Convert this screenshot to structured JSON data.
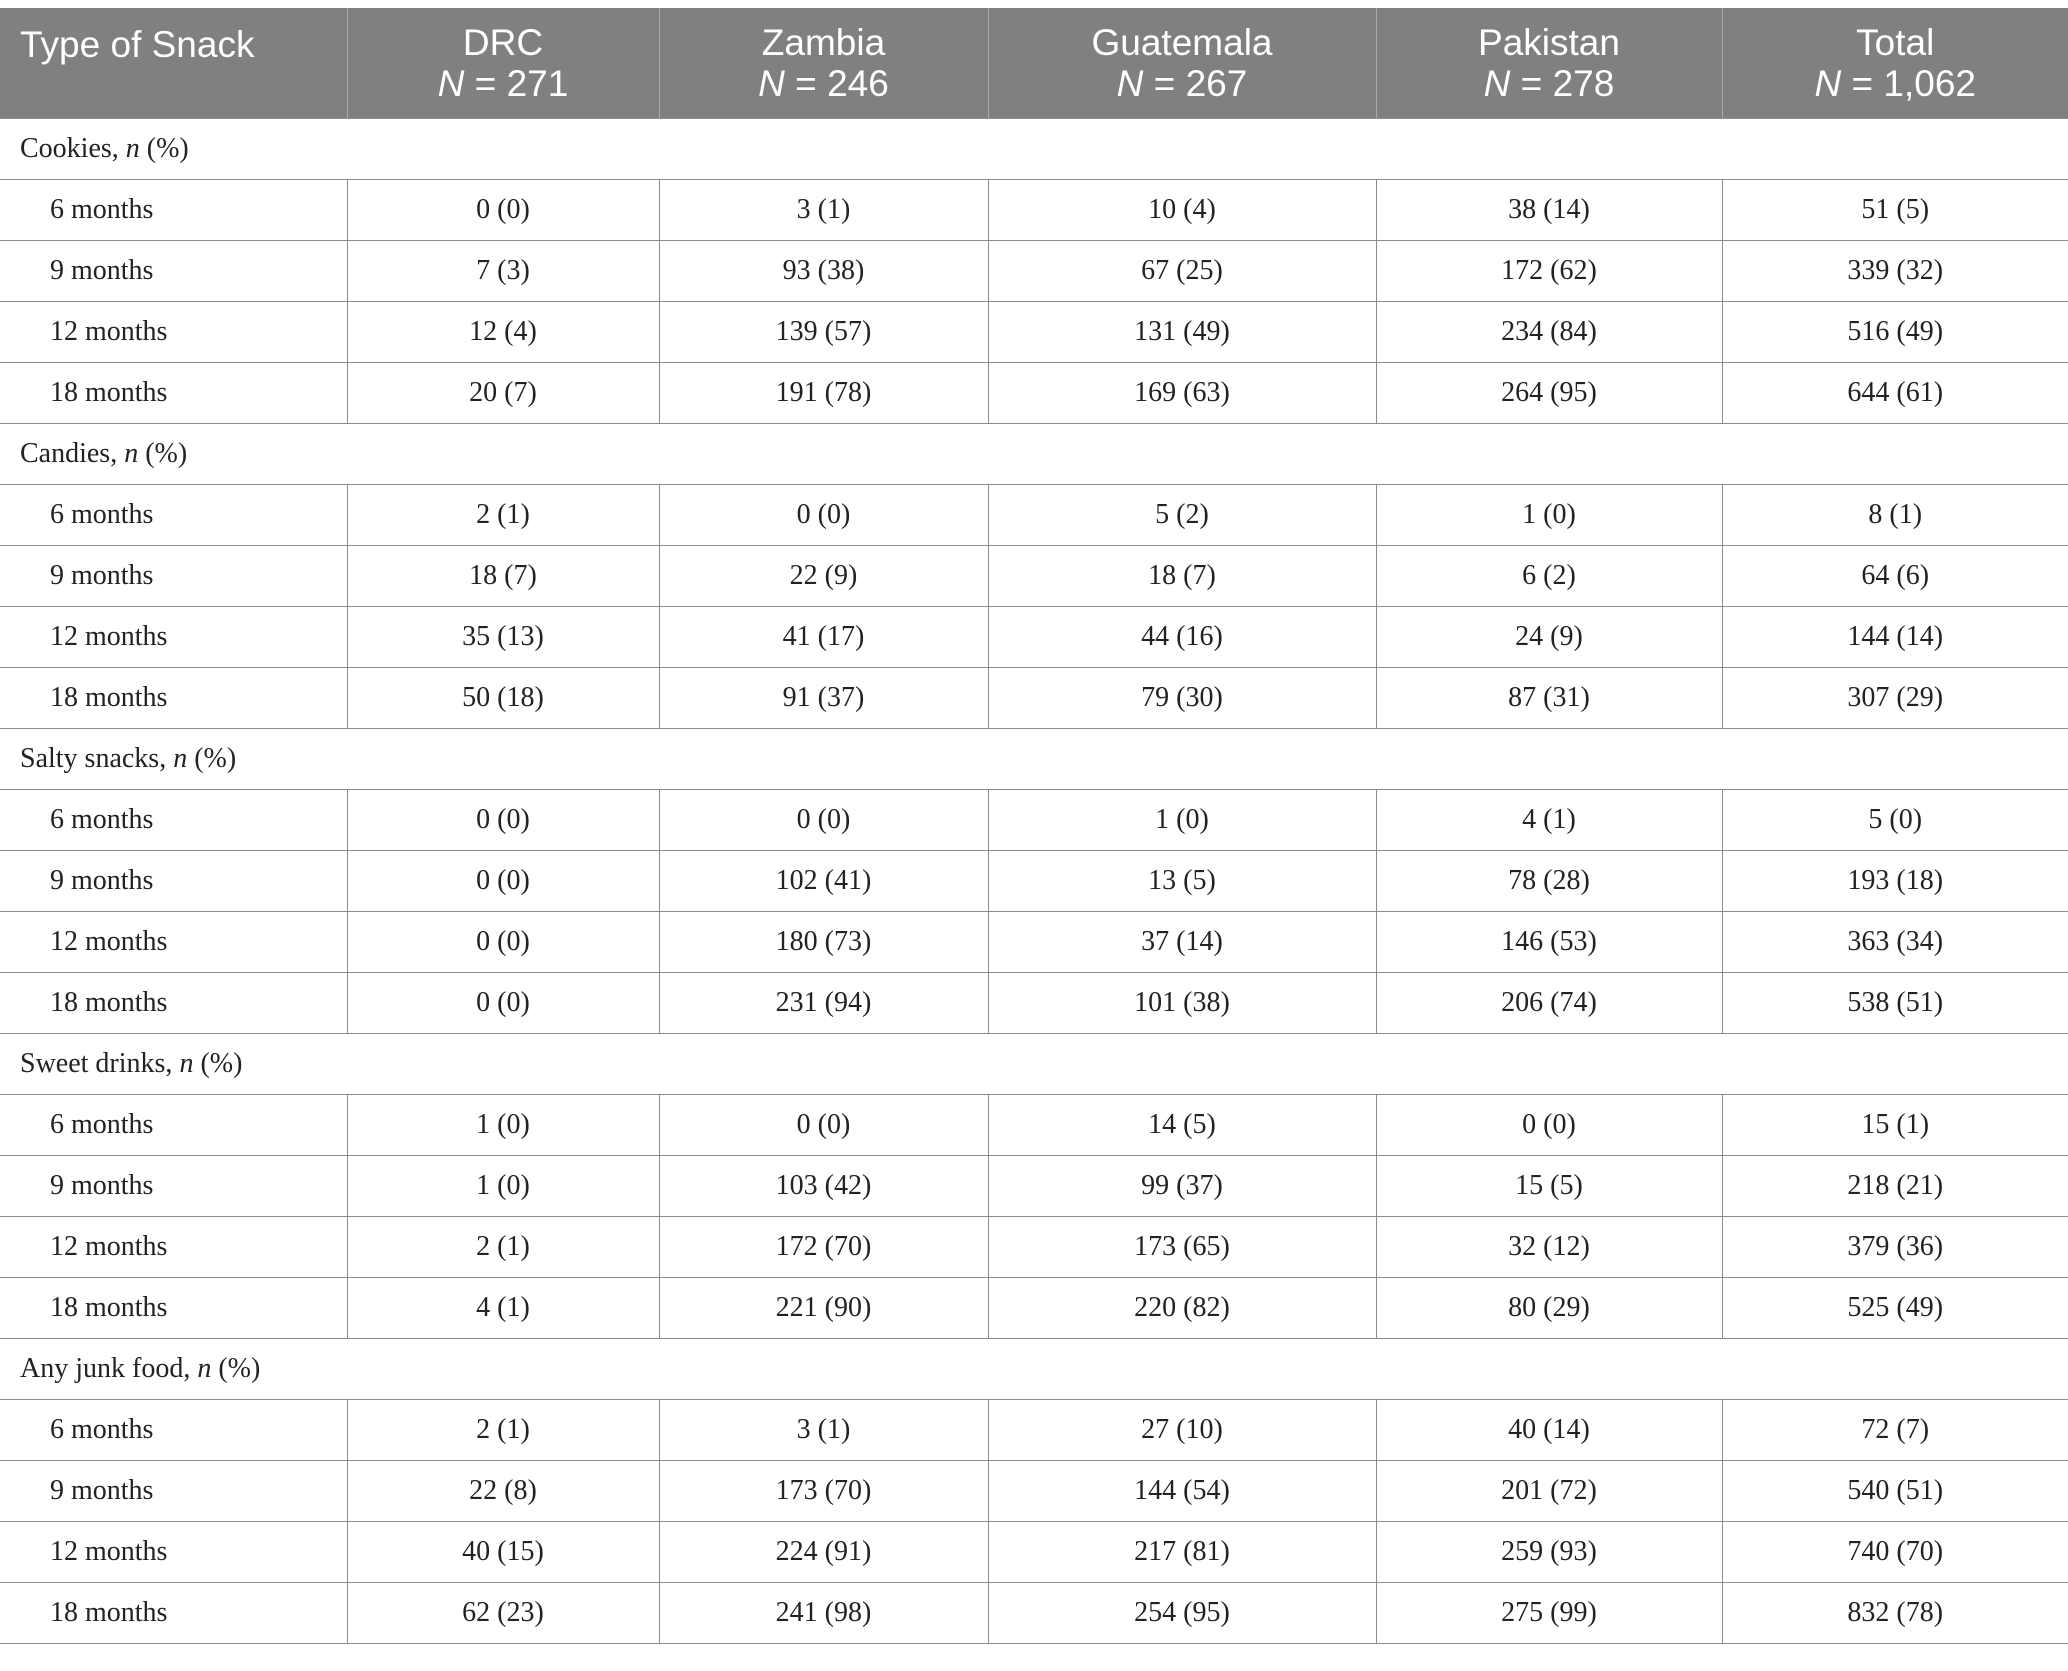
{
  "header": {
    "type_label": "Type of Snack",
    "columns": [
      {
        "name": "DRC",
        "n": "271"
      },
      {
        "name": "Zambia",
        "n": "246"
      },
      {
        "name": "Guatemala",
        "n": "267"
      },
      {
        "name": "Pakistan",
        "n": "278"
      },
      {
        "name": "Total",
        "n": "1,062"
      }
    ]
  },
  "n_prefix": "N = ",
  "sections": [
    {
      "title": "Cookies, ",
      "unit": "n",
      "unit_suffix": " (%)",
      "rows": [
        {
          "label": "6 months",
          "values": [
            "0 (0)",
            "3 (1)",
            "10 (4)",
            "38 (14)",
            "51 (5)"
          ]
        },
        {
          "label": "9 months",
          "values": [
            "7 (3)",
            "93 (38)",
            "67 (25)",
            "172 (62)",
            "339 (32)"
          ]
        },
        {
          "label": "12 months",
          "values": [
            "12 (4)",
            "139 (57)",
            "131 (49)",
            "234 (84)",
            "516 (49)"
          ]
        },
        {
          "label": "18 months",
          "values": [
            "20 (7)",
            "191 (78)",
            "169 (63)",
            "264 (95)",
            "644 (61)"
          ]
        }
      ]
    },
    {
      "title": "Candies, ",
      "unit": "n",
      "unit_suffix": " (%)",
      "rows": [
        {
          "label": "6 months",
          "values": [
            "2 (1)",
            "0 (0)",
            "5 (2)",
            "1 (0)",
            "8 (1)"
          ]
        },
        {
          "label": "9 months",
          "values": [
            "18 (7)",
            "22 (9)",
            "18 (7)",
            "6 (2)",
            "64 (6)"
          ]
        },
        {
          "label": "12 months",
          "values": [
            "35 (13)",
            "41 (17)",
            "44 (16)",
            "24 (9)",
            "144 (14)"
          ]
        },
        {
          "label": "18 months",
          "values": [
            "50 (18)",
            "91 (37)",
            "79 (30)",
            "87 (31)",
            "307 (29)"
          ]
        }
      ]
    },
    {
      "title": "Salty snacks, ",
      "unit": "n",
      "unit_suffix": " (%)",
      "rows": [
        {
          "label": "6 months",
          "values": [
            "0 (0)",
            "0 (0)",
            "1 (0)",
            "4 (1)",
            "5 (0)"
          ]
        },
        {
          "label": "9 months",
          "values": [
            "0 (0)",
            "102 (41)",
            "13 (5)",
            "78 (28)",
            "193 (18)"
          ]
        },
        {
          "label": "12 months",
          "values": [
            "0 (0)",
            "180 (73)",
            "37 (14)",
            "146 (53)",
            "363 (34)"
          ]
        },
        {
          "label": "18 months",
          "values": [
            "0 (0)",
            "231 (94)",
            "101 (38)",
            "206 (74)",
            "538 (51)"
          ]
        }
      ]
    },
    {
      "title": "Sweet drinks, ",
      "unit": "n",
      "unit_suffix": " (%)",
      "rows": [
        {
          "label": "6 months",
          "values": [
            "1 (0)",
            "0 (0)",
            "14 (5)",
            "0 (0)",
            "15 (1)"
          ]
        },
        {
          "label": "9 months",
          "values": [
            "1 (0)",
            "103 (42)",
            "99 (37)",
            "15 (5)",
            "218 (21)"
          ]
        },
        {
          "label": "12 months",
          "values": [
            "2 (1)",
            "172 (70)",
            "173 (65)",
            "32 (12)",
            "379 (36)"
          ]
        },
        {
          "label": "18 months",
          "values": [
            "4 (1)",
            "221 (90)",
            "220 (82)",
            "80 (29)",
            "525 (49)"
          ]
        }
      ]
    },
    {
      "title": "Any junk food, ",
      "unit": "n",
      "unit_suffix": " (%)",
      "rows": [
        {
          "label": "6 months",
          "values": [
            "2 (1)",
            "3 (1)",
            "27 (10)",
            "40 (14)",
            "72 (7)"
          ]
        },
        {
          "label": "9 months",
          "values": [
            "22 (8)",
            "173 (70)",
            "144 (54)",
            "201 (72)",
            "540 (51)"
          ]
        },
        {
          "label": "12 months",
          "values": [
            "40 (15)",
            "224 (91)",
            "217 (81)",
            "259 (93)",
            "740 (70)"
          ]
        },
        {
          "label": "18 months",
          "values": [
            "62 (23)",
            "241 (98)",
            "254 (95)",
            "275 (99)",
            "832 (78)"
          ]
        }
      ]
    }
  ]
}
